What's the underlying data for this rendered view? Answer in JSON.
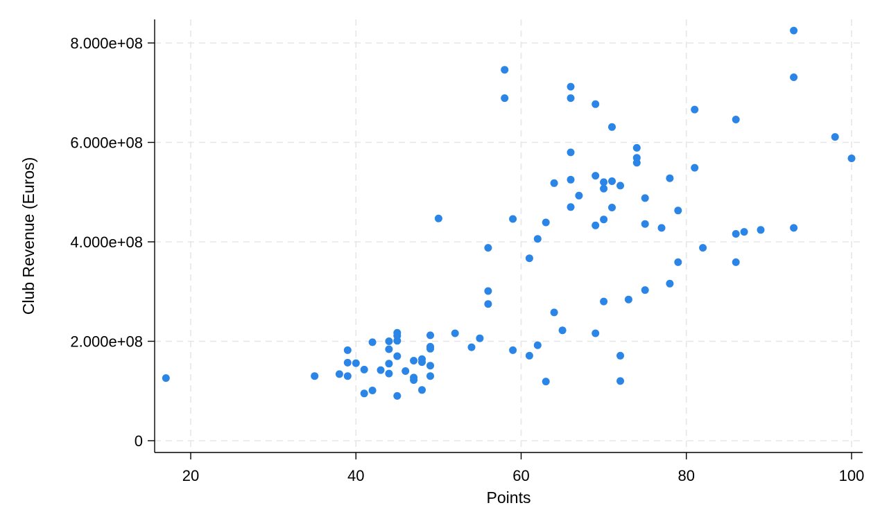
{
  "chart_data": {
    "type": "scatter",
    "title": "",
    "xlabel": "Points",
    "ylabel": "Club Revenue (Euros)",
    "xlim": [
      15,
      101
    ],
    "ylim": [
      -20000000,
      850000000
    ],
    "x_ticks": [
      20,
      40,
      60,
      80,
      100
    ],
    "x_tick_labels": [
      "20",
      "40",
      "60",
      "80",
      "100"
    ],
    "y_ticks": [
      0,
      200000000,
      400000000,
      600000000,
      800000000
    ],
    "y_tick_labels": [
      "0",
      "2.000e+08",
      "4.000e+08",
      "6.000e+08",
      "8.000e+08"
    ],
    "grid": true,
    "marker_color": "#2a85e6",
    "series": [
      {
        "points": [
          [
            17,
            126000000
          ],
          [
            35,
            130000000
          ],
          [
            38,
            134000000
          ],
          [
            39,
            182000000
          ],
          [
            39,
            157000000
          ],
          [
            39,
            130000000
          ],
          [
            40,
            156000000
          ],
          [
            41,
            143000000
          ],
          [
            41,
            95000000
          ],
          [
            42,
            198000000
          ],
          [
            42,
            101000000
          ],
          [
            43,
            142000000
          ],
          [
            44,
            200000000
          ],
          [
            44,
            184000000
          ],
          [
            44,
            155000000
          ],
          [
            44,
            135000000
          ],
          [
            45,
            217000000
          ],
          [
            45,
            211000000
          ],
          [
            45,
            201000000
          ],
          [
            45,
            170000000
          ],
          [
            45,
            90000000
          ],
          [
            46,
            140000000
          ],
          [
            47,
            161000000
          ],
          [
            47,
            127000000
          ],
          [
            47,
            122000000
          ],
          [
            48,
            164000000
          ],
          [
            48,
            158000000
          ],
          [
            48,
            102000000
          ],
          [
            49,
            212000000
          ],
          [
            49,
            189000000
          ],
          [
            49,
            185000000
          ],
          [
            49,
            151000000
          ],
          [
            49,
            130000000
          ],
          [
            50,
            447000000
          ],
          [
            52,
            216000000
          ],
          [
            54,
            188000000
          ],
          [
            55,
            206000000
          ],
          [
            56,
            388000000
          ],
          [
            56,
            301000000
          ],
          [
            56,
            275000000
          ],
          [
            58,
            746000000
          ],
          [
            58,
            689000000
          ],
          [
            59,
            446000000
          ],
          [
            59,
            182000000
          ],
          [
            61,
            367000000
          ],
          [
            61,
            171000000
          ],
          [
            62,
            406000000
          ],
          [
            62,
            192000000
          ],
          [
            63,
            439000000
          ],
          [
            63,
            119000000
          ],
          [
            64,
            518000000
          ],
          [
            64,
            258000000
          ],
          [
            65,
            222000000
          ],
          [
            66,
            712000000
          ],
          [
            66,
            689000000
          ],
          [
            66,
            580000000
          ],
          [
            66,
            525000000
          ],
          [
            66,
            470000000
          ],
          [
            67,
            493000000
          ],
          [
            69,
            677000000
          ],
          [
            69,
            533000000
          ],
          [
            69,
            433000000
          ],
          [
            69,
            216000000
          ],
          [
            70,
            520000000
          ],
          [
            70,
            507000000
          ],
          [
            70,
            445000000
          ],
          [
            70,
            280000000
          ],
          [
            71,
            631000000
          ],
          [
            71,
            522000000
          ],
          [
            71,
            469000000
          ],
          [
            72,
            513000000
          ],
          [
            72,
            171000000
          ],
          [
            72,
            120000000
          ],
          [
            73,
            284000000
          ],
          [
            74,
            589000000
          ],
          [
            74,
            569000000
          ],
          [
            74,
            559000000
          ],
          [
            75,
            488000000
          ],
          [
            75,
            436000000
          ],
          [
            75,
            303000000
          ],
          [
            77,
            428000000
          ],
          [
            78,
            528000000
          ],
          [
            78,
            316000000
          ],
          [
            79,
            463000000
          ],
          [
            79,
            359000000
          ],
          [
            81,
            666000000
          ],
          [
            81,
            549000000
          ],
          [
            82,
            388000000
          ],
          [
            86,
            646000000
          ],
          [
            86,
            416000000
          ],
          [
            86,
            359000000
          ],
          [
            87,
            420000000
          ],
          [
            89,
            424000000
          ],
          [
            93,
            825000000
          ],
          [
            93,
            731000000
          ],
          [
            93,
            428000000
          ],
          [
            98,
            611000000
          ],
          [
            100,
            568000000
          ]
        ]
      }
    ]
  }
}
